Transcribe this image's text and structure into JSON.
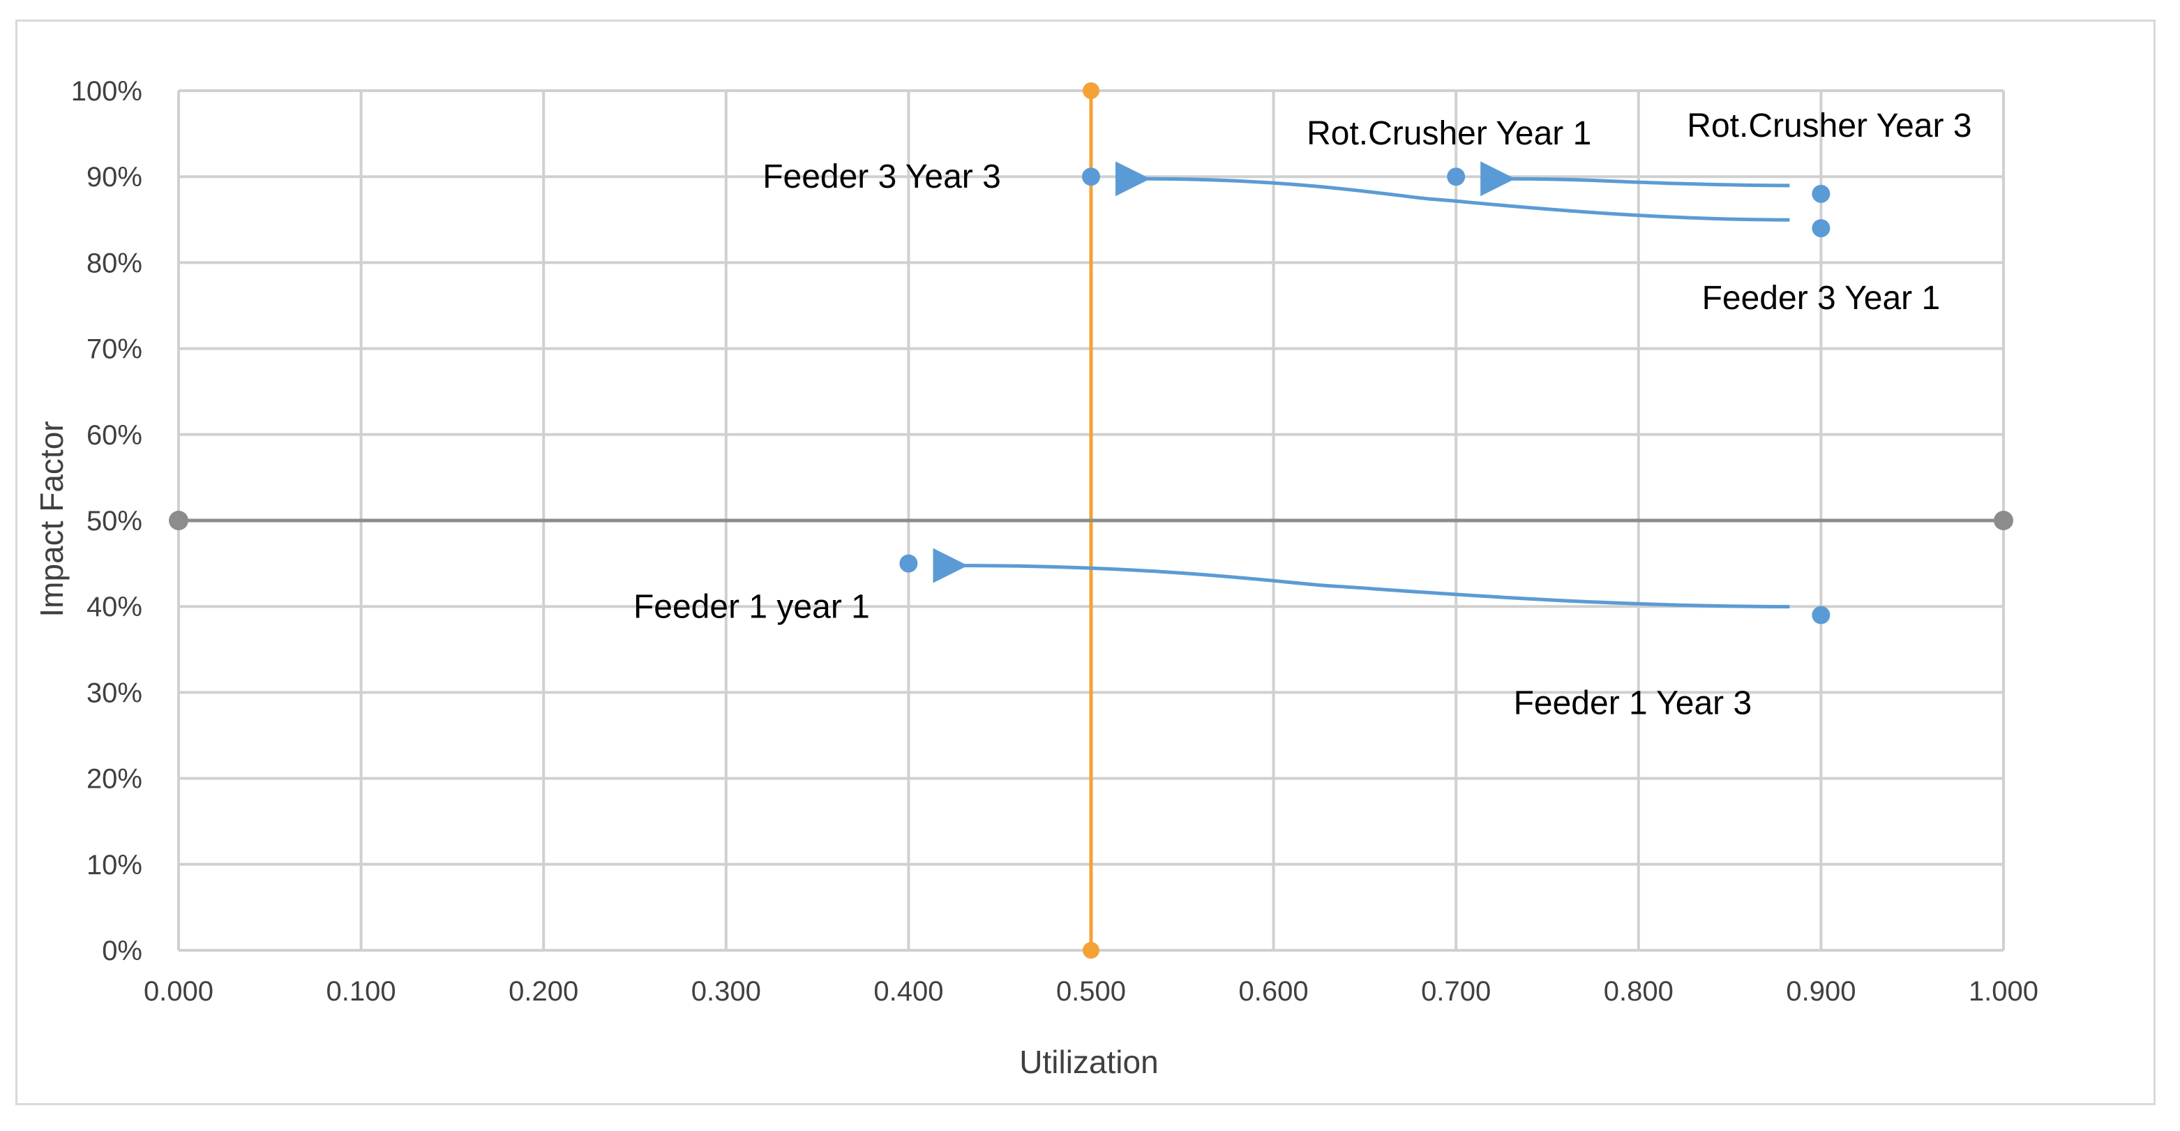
{
  "chart_data": {
    "type": "scatter",
    "title": "",
    "xlabel": "Utilization",
    "ylabel": "Impact Factor",
    "xlim": [
      0,
      1
    ],
    "ylim": [
      0,
      1
    ],
    "x_ticks": [
      "0.000",
      "0.100",
      "0.200",
      "0.300",
      "0.400",
      "0.500",
      "0.600",
      "0.700",
      "0.800",
      "0.900",
      "1.000"
    ],
    "y_ticks": [
      "0%",
      "10%",
      "20%",
      "30%",
      "40%",
      "50%",
      "60%",
      "70%",
      "80%",
      "90%",
      "100%"
    ],
    "grid": true,
    "legend": "none",
    "points": [
      {
        "x": 0.4,
        "y": 0.45,
        "label": "Feeder 1 year 1"
      },
      {
        "x": 0.9,
        "y": 0.39,
        "label": "Feeder 1 Year 3"
      },
      {
        "x": 0.9,
        "y": 0.84,
        "label": "Feeder 3 Year 1"
      },
      {
        "x": 0.5,
        "y": 0.9,
        "label": "Feeder 3 Year 3"
      },
      {
        "x": 0.7,
        "y": 0.9,
        "label": "Rot.Crusher Year 1"
      },
      {
        "x": 0.9,
        "y": 0.88,
        "label": "Rot.Crusher Year 3"
      }
    ],
    "reference_lines": [
      {
        "orientation": "vertical",
        "x": 0.5,
        "y": [
          0,
          1
        ],
        "color": "#f4a236"
      },
      {
        "orientation": "horizontal",
        "y": 0.5,
        "x": [
          0,
          1
        ],
        "color": "#8c8c8c"
      }
    ],
    "arrows": [
      {
        "from": "Rot.Crusher Year 3",
        "to": "Rot.Crusher Year 1"
      },
      {
        "from": "Feeder 3 Year 1",
        "to": "Feeder 3 Year 3"
      },
      {
        "from": "Feeder 1 Year 3",
        "to": "Feeder 1 year 1"
      }
    ],
    "colors": {
      "points": "#5b9bd5",
      "arrows": "#5b9bd5",
      "vertical_reference": "#f4a236",
      "horizontal_reference": "#8c8c8c",
      "grid": "#d0d0d0"
    }
  }
}
